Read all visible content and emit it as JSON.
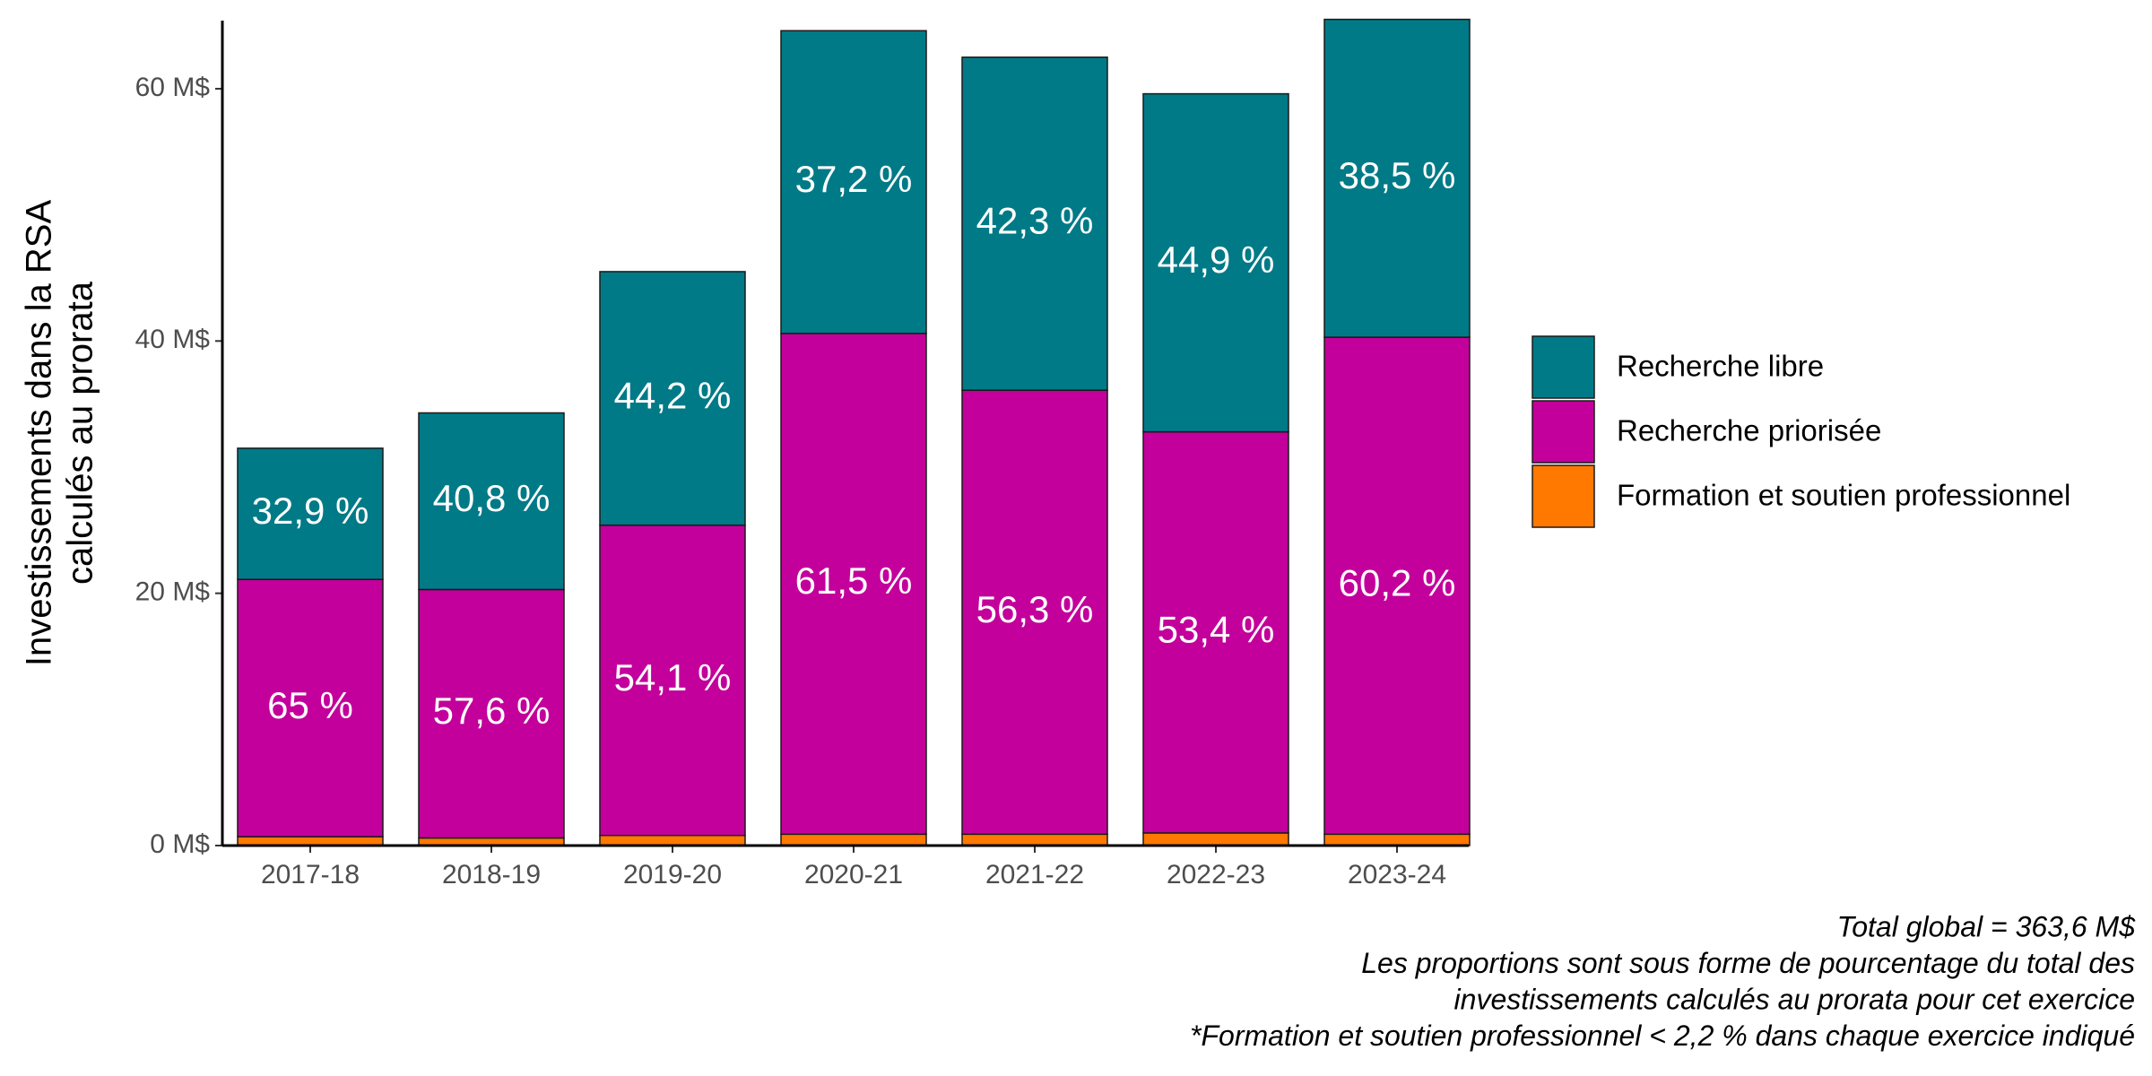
{
  "chart_data": {
    "type": "stacked_bar",
    "y_label": [
      "Investissements dans la RSA",
      "calculés au prorata"
    ],
    "categories": [
      "2017-18",
      "2018-19",
      "2019-20",
      "2020-21",
      "2021-22",
      "2022-23",
      "2023-24"
    ],
    "series": [
      {
        "name": "Recherche libre",
        "color": "#007a87",
        "values": [
          10.4,
          14.0,
          20.1,
          24.0,
          26.4,
          26.8,
          25.2
        ],
        "labels": [
          "32,9 %",
          "40,8 %",
          "44,2 %",
          "37,2 %",
          "42,3 %",
          "44,9 %",
          "38,5 %"
        ]
      },
      {
        "name": "Recherche priorisée",
        "color": "#c3009b",
        "values": [
          20.4,
          19.7,
          24.6,
          39.7,
          35.2,
          31.8,
          39.4
        ],
        "labels": [
          "65 %",
          "57,6 %",
          "54,1 %",
          "61,5 %",
          "56,3 %",
          "53,4 %",
          "60,2 %"
        ]
      },
      {
        "name": "Formation et soutien professionnel",
        "color": "#ff7800",
        "values": [
          0.7,
          0.6,
          0.8,
          0.9,
          0.9,
          1.0,
          0.9
        ]
      }
    ],
    "ylim": [
      0,
      65.4
    ],
    "yticks": [
      {
        "value": 0,
        "label": "0 M$"
      },
      {
        "value": 20,
        "label": "20 M$"
      },
      {
        "value": 40,
        "label": "40 M$"
      },
      {
        "value": 60,
        "label": "60 M$"
      }
    ],
    "legend_position": "right",
    "caption": [
      "Total global = 363,6 M$",
      "Les proportions sont sous forme de pourcentage du total des",
      "investissements calculés au prorata pour cet exercice",
      "*Formation et soutien professionnel < 2,2 % dans chaque exercice indiqué"
    ]
  }
}
